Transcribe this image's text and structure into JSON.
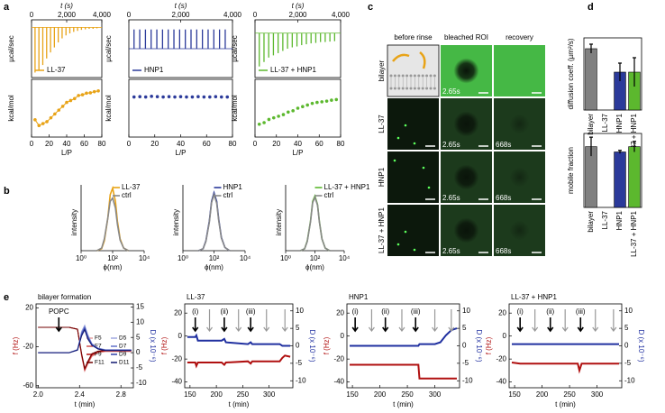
{
  "chart_data": [
    {
      "type": "itc",
      "panel": "a",
      "name": "LL-37",
      "color": "#e8a317",
      "fit": true,
      "top": {
        "xlabel": "t (s)",
        "ylabel": "µcal/sec",
        "xlim": [
          0,
          4000
        ],
        "xticks": [
          0,
          {
            "value": 2000,
            "label": "2,000"
          },
          {
            "value": 4000,
            "label": "4,000"
          }
        ],
        "ylim": [
          -1,
          0.15
        ],
        "x": [
          200,
          420,
          640,
          860,
          1080,
          1300,
          1520,
          1740,
          1960,
          2180,
          2400,
          2620,
          2840,
          3060,
          3280,
          3500,
          3720
        ],
        "values": [
          -0.9,
          -0.85,
          -0.75,
          -0.62,
          -0.5,
          -0.4,
          -0.3,
          -0.22,
          -0.16,
          -0.12,
          -0.09,
          -0.07,
          -0.05,
          -0.04,
          -0.03,
          -0.03,
          -0.02
        ]
      },
      "bottom": {
        "xlabel": "L/P",
        "ylabel": "kcal/mol",
        "xlim": [
          0,
          80
        ],
        "xticks": [
          0,
          20,
          40,
          60,
          80
        ],
        "ylim": [
          -1.2,
          0.3
        ],
        "x": [
          4,
          8.5,
          13,
          17.5,
          22,
          26.5,
          31,
          35.5,
          40,
          44.5,
          49,
          53.5,
          58,
          62.5,
          67,
          71.5,
          76
        ],
        "values": [
          -0.75,
          -0.9,
          -0.85,
          -0.8,
          -0.7,
          -0.6,
          -0.5,
          -0.4,
          -0.3,
          -0.25,
          -0.2,
          -0.12,
          -0.1,
          -0.06,
          -0.05,
          -0.02,
          0
        ]
      }
    },
    {
      "type": "itc",
      "name": "HNP1",
      "color": "#2b3a9a",
      "fit": false,
      "top": {
        "xlabel": "t (s)",
        "ylabel": "µcal/sec",
        "xlim": [
          0,
          4000
        ],
        "xticks": [
          0,
          {
            "value": 2000,
            "label": "2,000"
          },
          {
            "value": 4000,
            "label": "4,000"
          }
        ],
        "ylim": [
          -0.6,
          0.6
        ],
        "x": [
          200,
          420,
          640,
          860,
          1080,
          1300,
          1520,
          1740,
          1960,
          2180,
          2400,
          2620,
          2840,
          3060,
          3280,
          3500,
          3720
        ],
        "values": [
          0.4,
          0.4,
          0.4,
          0.4,
          0.4,
          0.4,
          0.4,
          0.4,
          0.4,
          0.4,
          0.4,
          0.4,
          0.4,
          0.4,
          0.4,
          0.4,
          0.4
        ]
      },
      "bottom": {
        "xlabel": "L/P",
        "ylabel": "kcal/mol",
        "xlim": [
          0,
          80
        ],
        "xticks": [
          0,
          20,
          40,
          60,
          80
        ],
        "ylim": [
          -1.2,
          0.6
        ],
        "x": [
          4,
          8.5,
          13,
          17.5,
          22,
          26.5,
          31,
          35.5,
          40,
          44.5,
          49,
          53.5,
          58,
          62.5,
          67,
          71.5,
          76
        ],
        "values": [
          0.05,
          0.06,
          0.05,
          0.07,
          0.06,
          0.05,
          0.06,
          0.05,
          0.06,
          0.05,
          0.05,
          0.06,
          0.05,
          0.05,
          0.06,
          0.05,
          0.05
        ]
      }
    },
    {
      "type": "itc",
      "name": "LL-37 + HNP1",
      "color": "#5cb82e",
      "fit": false,
      "top": {
        "xlabel": "t (s)",
        "ylabel": "µcal/sec",
        "xlim": [
          0,
          4000
        ],
        "xticks": [
          0,
          {
            "value": 2000,
            "label": "2,000"
          },
          {
            "value": 4000,
            "label": "4,000"
          }
        ],
        "ylim": [
          -1,
          0.3
        ],
        "x": [
          200,
          420,
          640,
          860,
          1080,
          1300,
          1520,
          1740,
          1960,
          2180,
          2400,
          2620,
          2840,
          3060,
          3280,
          3500,
          3720
        ],
        "values": [
          -0.75,
          -0.65,
          -0.55,
          -0.5,
          -0.45,
          -0.4,
          -0.35,
          -0.32,
          -0.3,
          -0.27,
          -0.25,
          -0.23,
          -0.22,
          -0.2,
          -0.2,
          -0.19,
          -0.18
        ]
      },
      "bottom": {
        "xlabel": "L/P",
        "ylabel": "kcal/mol",
        "xlim": [
          0,
          80
        ],
        "xticks": [
          0,
          20,
          40,
          60,
          80
        ],
        "ylim": [
          -1.2,
          0.6
        ],
        "x": [
          4,
          8.5,
          13,
          17.5,
          22,
          26.5,
          31,
          35.5,
          40,
          44.5,
          49,
          53.5,
          58,
          62.5,
          67,
          71.5,
          76
        ],
        "values": [
          -0.8,
          -0.75,
          -0.65,
          -0.6,
          -0.55,
          -0.5,
          -0.42,
          -0.38,
          -0.3,
          -0.25,
          -0.2,
          -0.15,
          -0.12,
          -0.1,
          -0.08,
          -0.05,
          -0.03
        ]
      }
    },
    {
      "type": "dls",
      "panel": "b",
      "xlabel": "ϕ(nm)",
      "ylabel": "intensity",
      "log_x": true,
      "xlim": [
        1,
        10000
      ],
      "xticks": [
        {
          "value": 1,
          "label": "10⁰"
        },
        {
          "value": 100,
          "label": "10²"
        },
        {
          "value": 10000,
          "label": "10⁴"
        }
      ],
      "ylim": [
        0,
        10
      ],
      "x": [
        10,
        20,
        30,
        50,
        70,
        100,
        150,
        200,
        300,
        500,
        1000
      ],
      "series": [
        {
          "name": "LL-37",
          "color": "#e8a317",
          "values": [
            0,
            0.3,
            1.5,
            5,
            8.5,
            9.5,
            7.5,
            4.5,
            1.8,
            0.4,
            0
          ]
        },
        {
          "name": "ctrl",
          "color": "#888888",
          "values": [
            0,
            0.4,
            1.8,
            5,
            7.5,
            8,
            6.5,
            4,
            1.6,
            0.4,
            0
          ]
        }
      ]
    },
    {
      "type": "dls",
      "xlabel": "ϕ(nm)",
      "ylabel": "intensity",
      "log_x": true,
      "xlim": [
        1,
        10000
      ],
      "xticks": [
        {
          "value": 1,
          "label": "10⁰"
        },
        {
          "value": 100,
          "label": "10²"
        },
        {
          "value": 10000,
          "label": "10⁴"
        }
      ],
      "ylim": [
        0,
        10
      ],
      "x": [
        10,
        20,
        30,
        50,
        70,
        100,
        150,
        200,
        300,
        500,
        1000
      ],
      "series": [
        {
          "name": "HNP1",
          "color": "#2b3a9a",
          "values": [
            0,
            0.3,
            1.5,
            4.5,
            7.5,
            8.8,
            7.5,
            4.8,
            2,
            0.5,
            0
          ]
        },
        {
          "name": "ctrl",
          "color": "#888888",
          "values": [
            0,
            0.3,
            1.4,
            4.3,
            7.3,
            8.5,
            7.2,
            4.6,
            1.9,
            0.5,
            0
          ]
        }
      ]
    },
    {
      "type": "dls",
      "xlabel": "ϕ(nm)",
      "ylabel": "intensity",
      "log_x": true,
      "xlim": [
        1,
        10000
      ],
      "xticks": [
        {
          "value": 1,
          "label": "10⁰"
        },
        {
          "value": 100,
          "label": "10²"
        },
        {
          "value": 10000,
          "label": "10⁴"
        }
      ],
      "ylim": [
        0,
        10
      ],
      "x": [
        10,
        20,
        30,
        50,
        70,
        100,
        150,
        200,
        300,
        500,
        1000
      ],
      "series": [
        {
          "name": "LL-37 + HNP1",
          "color": "#5cb82e",
          "values": [
            0,
            0.3,
            1.5,
            4.5,
            7.5,
            8.3,
            7,
            4.5,
            1.8,
            0.4,
            0
          ]
        },
        {
          "name": "ctrl",
          "color": "#888888",
          "values": [
            0,
            0.3,
            1.4,
            4.4,
            7.3,
            8.1,
            6.9,
            4.4,
            1.8,
            0.4,
            0
          ]
        }
      ]
    },
    {
      "type": "image-grid",
      "panel": "c",
      "columns": [
        "before rinse",
        "bleached ROI",
        "recovery"
      ],
      "rows": [
        "bilayer",
        "LL-37",
        "HNP1",
        "LL-37 + HNP1"
      ],
      "bleach_time": "2.65s",
      "recovery_time": "668s"
    },
    {
      "type": "bar",
      "panel": "d",
      "ylabel": "diffusion coeff. (µm²/s)",
      "categories": [
        "bilayer",
        "LL-37",
        "HNP1",
        "LL-37 + HNP1"
      ],
      "values": [
        3.4,
        null,
        2.1,
        2.1
      ],
      "errors": [
        0.25,
        null,
        0.5,
        0.8
      ],
      "colors": [
        "#808080",
        "#808080",
        "#2b3a9a",
        "#5cb82e"
      ],
      "ylim": [
        0,
        4
      ]
    },
    {
      "type": "bar",
      "ylabel": "mobile fraction",
      "categories": [
        "bilayer",
        "LL-37",
        "HNP1",
        "LL-37 + HNP1"
      ],
      "values": [
        1.15,
        null,
        1.05,
        1.15
      ],
      "errors": [
        0.18,
        null,
        0.03,
        0.1
      ],
      "colors": [
        "#808080",
        "#808080",
        "#2b3a9a",
        "#5cb82e"
      ],
      "ylim": [
        0,
        1.4
      ]
    },
    {
      "type": "qcm",
      "panel": "e",
      "title": "bilayer formation",
      "xlabel": "t (min)",
      "ylabel": "f (Hz)",
      "y2label": "D (x 10⁻⁶)",
      "xlim": [
        1.98,
        2.92
      ],
      "xticks": [
        {
          "value": 2,
          "label": "2.0"
        },
        2.4,
        2.8
      ],
      "ylim": [
        -62,
        24
      ],
      "yticks": [
        -60,
        -20,
        20
      ],
      "y2lim": [
        -11.5,
        16
      ],
      "y2ticks": [
        -10,
        -5,
        0,
        5,
        10,
        15
      ],
      "x": [
        2.0,
        2.1,
        2.2,
        2.3,
        2.38,
        2.42,
        2.45,
        2.48,
        2.52,
        2.58,
        2.65,
        2.75,
        2.9
      ],
      "series": [
        {
          "name": "F5",
          "color": "#e6a0a0",
          "axis": "y",
          "values": [
            0,
            0,
            0,
            0,
            -2,
            -30,
            -45,
            -38,
            -30,
            -26,
            -25,
            -25,
            -25
          ]
        },
        {
          "name": "F7",
          "color": "#d05050",
          "axis": "y",
          "values": [
            0,
            0,
            0,
            0,
            -2,
            -29,
            -44,
            -37,
            -29,
            -25.5,
            -24.5,
            -24.5,
            -24.5
          ]
        },
        {
          "name": "F9",
          "color": "#b01010",
          "axis": "y",
          "values": [
            0,
            0,
            0,
            0,
            -2,
            -28,
            -43,
            -36,
            -28,
            -25,
            -24,
            -24,
            -24
          ]
        },
        {
          "name": "F11",
          "color": "#700000",
          "axis": "y",
          "values": [
            0,
            0,
            0,
            0,
            -2,
            -27,
            -42,
            -35,
            -27,
            -24.5,
            -23.5,
            -23.5,
            -23.5
          ]
        },
        {
          "name": "D5",
          "color": "#a0a8e0",
          "axis": "y2",
          "values": [
            0,
            0,
            0,
            0,
            1,
            7,
            9,
            6,
            3,
            1.5,
            1,
            1,
            1
          ]
        },
        {
          "name": "D7",
          "color": "#6070c8",
          "axis": "y2",
          "values": [
            0,
            0,
            0,
            0,
            1,
            6.5,
            8.5,
            5.5,
            2.8,
            1.4,
            0.9,
            0.9,
            0.9
          ]
        },
        {
          "name": "D9",
          "color": "#3040a8",
          "axis": "y2",
          "values": [
            0,
            0,
            0,
            0,
            0.9,
            6,
            8,
            5,
            2.6,
            1.3,
            0.8,
            0.8,
            0.8
          ]
        },
        {
          "name": "D11",
          "color": "#101870",
          "axis": "y2",
          "values": [
            0,
            0,
            0,
            0,
            0.8,
            5.5,
            7.5,
            4.5,
            2.4,
            1.2,
            0.7,
            0.7,
            0.7
          ]
        }
      ],
      "annotations": [
        {
          "label": "POPC",
          "x": 2.2
        }
      ]
    },
    {
      "type": "qcm",
      "title": "LL-37",
      "xlabel": "t (min)",
      "ylabel": "f (Hz)",
      "y2label": "D (x 10⁻⁶)",
      "xlim": [
        140,
        345
      ],
      "xticks": [
        150,
        200,
        250,
        300
      ],
      "ylim": [
        -45,
        28
      ],
      "yticks": [
        -40,
        -20,
        0,
        20
      ],
      "y2lim": [
        -12,
        12
      ],
      "y2ticks": [
        -10,
        -5,
        0,
        5,
        10
      ],
      "x": [
        145,
        160,
        162,
        165,
        210,
        215,
        218,
        260,
        265,
        268,
        320,
        325,
        330,
        340
      ],
      "series": [
        {
          "color": "#b01010",
          "axis": "y",
          "values": [
            -23,
            -23,
            -26,
            -23,
            -23,
            -25,
            -23,
            -22,
            -24,
            -22,
            -22,
            -19,
            -17,
            -18
          ]
        },
        {
          "color": "#2030a0",
          "axis": "y2",
          "values": [
            2.5,
            2.5,
            3,
            1.5,
            1.5,
            2,
            1,
            0.5,
            1,
            0.5,
            0.5,
            0,
            0,
            0
          ]
        }
      ],
      "annotations": [
        {
          "label": "(i)",
          "x": 160
        },
        {
          "label": "(ii)",
          "x": 215
        },
        {
          "label": "(iii)",
          "x": 265
        }
      ],
      "rinses": [
        187,
        242,
        295,
        330
      ]
    },
    {
      "type": "qcm",
      "title": "HNP1",
      "xlabel": "t (min)",
      "ylabel": "f (Hz)",
      "y2label": "D (x 10⁻⁶)",
      "xlim": [
        140,
        345
      ],
      "xticks": [
        150,
        200,
        250,
        300
      ],
      "ylim": [
        -45,
        28
      ],
      "yticks": [
        -40,
        -20,
        0,
        20
      ],
      "y2lim": [
        -12,
        12
      ],
      "y2ticks": [
        -10,
        -5,
        0,
        5,
        10
      ],
      "x": [
        145,
        200,
        270,
        272,
        300,
        310,
        320,
        330,
        340
      ],
      "series": [
        {
          "color": "#b01010",
          "axis": "y",
          "values": [
            -25,
            -25,
            -25,
            -37,
            -37,
            -37,
            -37,
            -37,
            -37
          ]
        },
        {
          "color": "#2030a0",
          "axis": "y2",
          "values": [
            0,
            0,
            0,
            0.5,
            0.5,
            1,
            3,
            4.5,
            5
          ]
        }
      ],
      "annotations": [
        {
          "label": "(i)",
          "x": 155
        },
        {
          "label": "(ii)",
          "x": 210
        },
        {
          "label": "(iii)",
          "x": 265
        }
      ],
      "rinses": [
        185,
        240,
        300,
        330
      ]
    },
    {
      "type": "qcm",
      "title": "LL-37 + HNP1",
      "xlabel": "t (min)",
      "ylabel": "f (Hz)",
      "y2label": "D (x 10⁻⁶)",
      "xlim": [
        140,
        345
      ],
      "xticks": [
        150,
        200,
        250,
        300
      ],
      "ylim": [
        -45,
        28
      ],
      "yticks": [
        -40,
        -20,
        0,
        20
      ],
      "y2lim": [
        -12,
        12
      ],
      "y2ticks": [
        -10,
        -5,
        0,
        5,
        10
      ],
      "x": [
        145,
        160,
        200,
        265,
        268,
        272,
        300,
        340
      ],
      "series": [
        {
          "color": "#b01010",
          "axis": "y",
          "values": [
            -23,
            -24,
            -24,
            -24,
            -30,
            -24,
            -24,
            -24
          ]
        },
        {
          "color": "#2030a0",
          "axis": "y2",
          "values": [
            0.5,
            0.5,
            0.5,
            0.5,
            0.5,
            0.5,
            0.5,
            0.5
          ]
        }
      ],
      "annotations": [
        {
          "label": "(i)",
          "x": 160
        },
        {
          "label": "(ii)",
          "x": 215
        },
        {
          "label": "(iii)",
          "x": 270
        }
      ],
      "rinses": [
        187,
        242,
        297,
        330
      ]
    }
  ]
}
